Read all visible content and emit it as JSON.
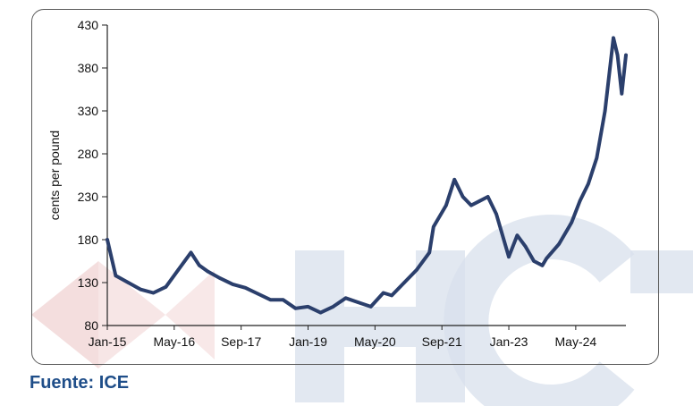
{
  "source_text": "Fuente: ICE",
  "watermark_text": "HCT",
  "colors": {
    "line": "#2b3f6c",
    "axis": "#222222",
    "watermark_blue": "#d3dcea",
    "watermark_red": "#f1d6d6",
    "source": "#1f4e89"
  },
  "chart_data": {
    "type": "line",
    "title": "",
    "xlabel": "",
    "ylabel": "cents per pound",
    "ylim": [
      80,
      430
    ],
    "yticks": [
      80,
      130,
      180,
      230,
      280,
      330,
      380,
      430
    ],
    "xticks": [
      "Jan-15",
      "May-16",
      "Sep-17",
      "Jan-19",
      "May-20",
      "Sep-21",
      "Jan-23",
      "May-24"
    ],
    "grid": false,
    "series": [
      {
        "name": "",
        "x": [
          "Jan-15",
          "Mar-15",
          "Jun-15",
          "Sep-15",
          "Dec-15",
          "Mar-16",
          "Jun-16",
          "Sep-16",
          "Nov-16",
          "Jan-17",
          "Apr-17",
          "Jul-17",
          "Oct-17",
          "Jan-18",
          "Apr-18",
          "Jul-18",
          "Oct-18",
          "Jan-19",
          "Apr-19",
          "Jul-19",
          "Oct-19",
          "Jan-20",
          "Apr-20",
          "Jul-20",
          "Sep-20",
          "Dec-20",
          "Mar-21",
          "Jun-21",
          "Jul-21",
          "Oct-21",
          "Dec-21",
          "Feb-22",
          "Apr-22",
          "Jun-22",
          "Aug-22",
          "Oct-22",
          "Jan-23",
          "Mar-23",
          "May-23",
          "Jul-23",
          "Sep-23",
          "Oct-23",
          "Jan-24",
          "Apr-24",
          "Jun-24",
          "Aug-24",
          "Oct-24",
          "Dec-24",
          "Feb-25",
          "Mar-25",
          "Apr-25",
          "May-25"
        ],
        "values": [
          180,
          138,
          130,
          122,
          118,
          125,
          145,
          165,
          150,
          143,
          135,
          128,
          124,
          117,
          110,
          110,
          100,
          102,
          95,
          102,
          112,
          107,
          102,
          118,
          115,
          130,
          145,
          165,
          195,
          220,
          250,
          230,
          220,
          225,
          230,
          210,
          160,
          185,
          172,
          155,
          150,
          158,
          175,
          200,
          225,
          245,
          275,
          330,
          415,
          395,
          350,
          395
        ]
      }
    ]
  }
}
